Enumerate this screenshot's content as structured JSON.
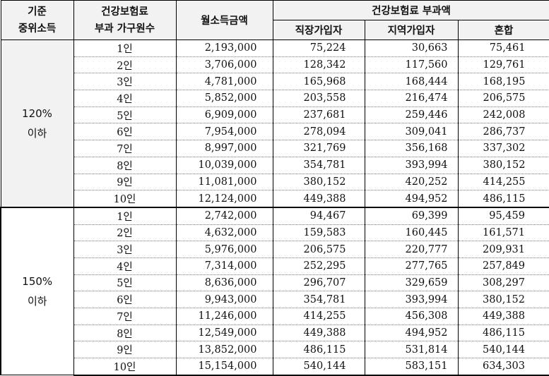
{
  "headers": {
    "col1": [
      "기준",
      "중위소득"
    ],
    "col2": [
      "건강보험료",
      "부과 가구원수"
    ],
    "col3": "월소득금액",
    "group": "건강보험료 부과액",
    "sub": [
      "직장가입자",
      "지역가입자",
      "혼합"
    ]
  },
  "groups": [
    {
      "label": [
        "120%",
        "이하"
      ],
      "rows": [
        [
          "1인",
          "2,193,000",
          "75,224",
          "30,663",
          "75,461"
        ],
        [
          "2인",
          "3,706,000",
          "128,342",
          "117,560",
          "129,761"
        ],
        [
          "3인",
          "4,781,000",
          "165,968",
          "168,444",
          "168,195"
        ],
        [
          "4인",
          "5,852,000",
          "203,558",
          "216,474",
          "206,575"
        ],
        [
          "5인",
          "6,909,000",
          "237,681",
          "259,446",
          "242,008"
        ],
        [
          "6인",
          "7,954,000",
          "278,094",
          "309,041",
          "286,737"
        ],
        [
          "7인",
          "8,997,000",
          "321,769",
          "356,168",
          "337,302"
        ],
        [
          "8인",
          "10,039,000",
          "354,781",
          "393,994",
          "380,152"
        ],
        [
          "9인",
          "11,081,000",
          "380,152",
          "420,252",
          "414,255"
        ],
        [
          "10인",
          "12,124,000",
          "449,388",
          "494,952",
          "486,115"
        ]
      ]
    },
    {
      "label": [
        "150%",
        "이하"
      ],
      "rows": [
        [
          "1인",
          "2,742,000",
          "94,467",
          "69,399",
          "95,459"
        ],
        [
          "2인",
          "4,632,000",
          "159,583",
          "160,445",
          "161,571"
        ],
        [
          "3인",
          "5,976,000",
          "206,575",
          "220,777",
          "209,931"
        ],
        [
          "4인",
          "7,314,000",
          "252,295",
          "277,765",
          "257,849"
        ],
        [
          "5인",
          "8,636,000",
          "296,707",
          "329,659",
          "308,297"
        ],
        [
          "6인",
          "9,943,000",
          "354,781",
          "393,994",
          "380,152"
        ],
        [
          "7인",
          "11,246,000",
          "414,255",
          "456,308",
          "449,388"
        ],
        [
          "8인",
          "12,549,000",
          "449,388",
          "494,952",
          "486,115"
        ],
        [
          "9인",
          "13,852,000",
          "486,115",
          "531,814",
          "540,144"
        ],
        [
          "10인",
          "15,154,000",
          "540,144",
          "583,151",
          "634,303"
        ]
      ]
    }
  ]
}
